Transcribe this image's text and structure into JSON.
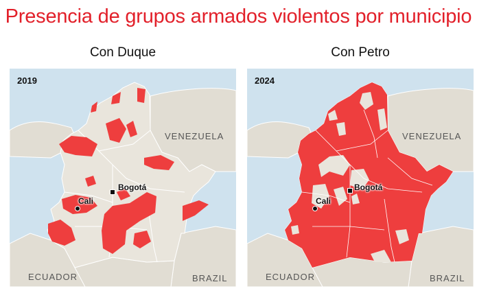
{
  "title": "Presencia de grupos armados violentos por municipio",
  "colors": {
    "title": "#e2202a",
    "armed_presence": "#ee3e3e",
    "land": "#e9e5dc",
    "neighbor_land": "#e1ddd3",
    "sea": "#cfe2ee",
    "border": "#ffffff"
  },
  "maps": [
    {
      "subtitle": "Con Duque",
      "year": "2019",
      "countries": {
        "venezuela": "VENEZUELA",
        "ecuador": "ECUADOR",
        "brazil": "BRAZIL"
      },
      "cities": {
        "bogota": "Bogotá",
        "cali": "Cali"
      }
    },
    {
      "subtitle": "Con Petro",
      "year": "2024",
      "countries": {
        "venezuela": "VENEZUELA",
        "ecuador": "ECUADOR",
        "brazil": "BRAZIL"
      },
      "cities": {
        "bogota": "Bogotá",
        "cali": "Cali"
      }
    }
  ]
}
